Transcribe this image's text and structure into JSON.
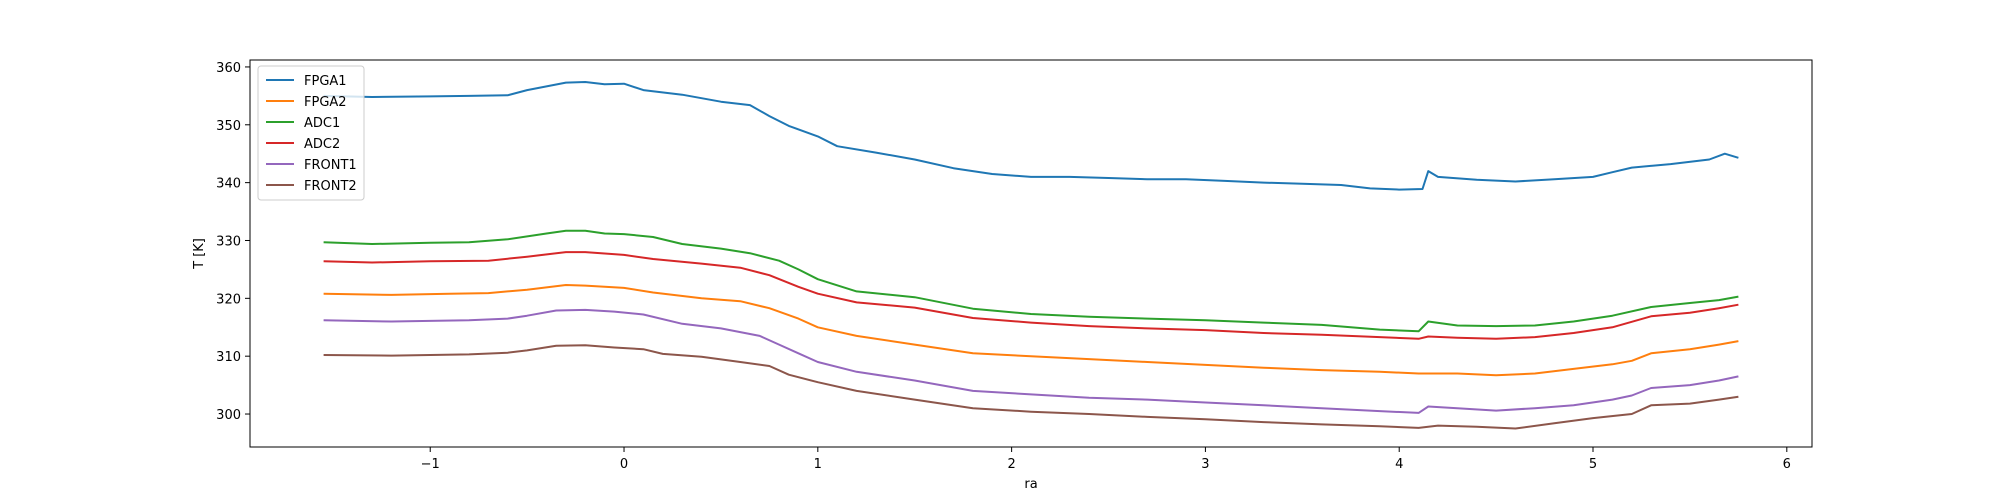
{
  "chart_data": {
    "type": "line",
    "title": "",
    "xlabel": "ra",
    "ylabel": "T [K]",
    "xlim": [
      -1.93,
      6.13
    ],
    "ylim": [
      294.3,
      361.2
    ],
    "xticks": [
      -1,
      0,
      1,
      2,
      3,
      4,
      5,
      6
    ],
    "yticks": [
      300,
      310,
      320,
      330,
      340,
      350,
      360
    ],
    "xtick_labels": [
      "−1",
      "0",
      "1",
      "2",
      "3",
      "4",
      "5",
      "6"
    ],
    "ytick_labels": [
      "300",
      "310",
      "320",
      "330",
      "340",
      "350",
      "360"
    ],
    "grid": false,
    "legend_position": "top-left",
    "series": [
      {
        "name": "FPGA1",
        "color": "#1f77b4",
        "points": [
          [
            -1.55,
            355.0
          ],
          [
            -1.3,
            354.8
          ],
          [
            -1.0,
            354.9
          ],
          [
            -0.8,
            355.0
          ],
          [
            -0.6,
            355.1
          ],
          [
            -0.5,
            356.0
          ],
          [
            -0.3,
            357.3
          ],
          [
            -0.2,
            357.4
          ],
          [
            -0.1,
            357.0
          ],
          [
            0.0,
            357.1
          ],
          [
            0.1,
            356.0
          ],
          [
            0.3,
            355.2
          ],
          [
            0.5,
            354.0
          ],
          [
            0.65,
            353.4
          ],
          [
            0.75,
            351.5
          ],
          [
            0.85,
            349.8
          ],
          [
            1.0,
            348.0
          ],
          [
            1.1,
            346.3
          ],
          [
            1.3,
            345.2
          ],
          [
            1.5,
            344.0
          ],
          [
            1.7,
            342.5
          ],
          [
            1.9,
            341.5
          ],
          [
            2.1,
            341.0
          ],
          [
            2.3,
            341.0
          ],
          [
            2.5,
            340.8
          ],
          [
            2.7,
            340.6
          ],
          [
            2.9,
            340.6
          ],
          [
            3.1,
            340.3
          ],
          [
            3.3,
            340.0
          ],
          [
            3.5,
            339.8
          ],
          [
            3.7,
            339.6
          ],
          [
            3.85,
            339.0
          ],
          [
            4.0,
            338.8
          ],
          [
            4.12,
            338.9
          ],
          [
            4.15,
            342.0
          ],
          [
            4.2,
            341.0
          ],
          [
            4.4,
            340.5
          ],
          [
            4.6,
            340.2
          ],
          [
            4.8,
            340.6
          ],
          [
            5.0,
            341.0
          ],
          [
            5.1,
            341.8
          ],
          [
            5.2,
            342.6
          ],
          [
            5.4,
            343.2
          ],
          [
            5.6,
            344.0
          ],
          [
            5.68,
            345.0
          ],
          [
            5.75,
            344.3
          ]
        ]
      },
      {
        "name": "FPGA2",
        "color": "#ff7f0e",
        "points": [
          [
            -1.55,
            320.8
          ],
          [
            -1.2,
            320.6
          ],
          [
            -0.9,
            320.8
          ],
          [
            -0.7,
            320.9
          ],
          [
            -0.5,
            321.5
          ],
          [
            -0.3,
            322.3
          ],
          [
            -0.2,
            322.2
          ],
          [
            0.0,
            321.8
          ],
          [
            0.15,
            321.0
          ],
          [
            0.4,
            320.0
          ],
          [
            0.6,
            319.5
          ],
          [
            0.75,
            318.3
          ],
          [
            0.9,
            316.5
          ],
          [
            1.0,
            315.0
          ],
          [
            1.2,
            313.5
          ],
          [
            1.5,
            312.0
          ],
          [
            1.8,
            310.5
          ],
          [
            2.1,
            310.0
          ],
          [
            2.4,
            309.5
          ],
          [
            2.7,
            309.0
          ],
          [
            3.0,
            308.5
          ],
          [
            3.3,
            308.0
          ],
          [
            3.6,
            307.6
          ],
          [
            3.9,
            307.3
          ],
          [
            4.1,
            307.0
          ],
          [
            4.3,
            307.0
          ],
          [
            4.5,
            306.7
          ],
          [
            4.7,
            307.0
          ],
          [
            4.9,
            307.8
          ],
          [
            5.1,
            308.6
          ],
          [
            5.2,
            309.2
          ],
          [
            5.3,
            310.5
          ],
          [
            5.5,
            311.2
          ],
          [
            5.65,
            312.0
          ],
          [
            5.75,
            312.6
          ]
        ]
      },
      {
        "name": "ADC1",
        "color": "#2ca02c",
        "points": [
          [
            -1.55,
            329.7
          ],
          [
            -1.3,
            329.4
          ],
          [
            -1.0,
            329.6
          ],
          [
            -0.8,
            329.7
          ],
          [
            -0.6,
            330.2
          ],
          [
            -0.4,
            331.2
          ],
          [
            -0.3,
            331.7
          ],
          [
            -0.2,
            331.7
          ],
          [
            -0.1,
            331.2
          ],
          [
            0.0,
            331.1
          ],
          [
            0.15,
            330.6
          ],
          [
            0.3,
            329.4
          ],
          [
            0.5,
            328.6
          ],
          [
            0.65,
            327.8
          ],
          [
            0.8,
            326.5
          ],
          [
            0.9,
            325.0
          ],
          [
            1.0,
            323.3
          ],
          [
            1.2,
            321.2
          ],
          [
            1.5,
            320.2
          ],
          [
            1.8,
            318.2
          ],
          [
            2.1,
            317.3
          ],
          [
            2.4,
            316.8
          ],
          [
            2.7,
            316.5
          ],
          [
            3.0,
            316.2
          ],
          [
            3.3,
            315.8
          ],
          [
            3.6,
            315.4
          ],
          [
            3.9,
            314.6
          ],
          [
            4.1,
            314.3
          ],
          [
            4.15,
            316.0
          ],
          [
            4.3,
            315.3
          ],
          [
            4.5,
            315.2
          ],
          [
            4.7,
            315.3
          ],
          [
            4.9,
            316.0
          ],
          [
            5.1,
            317.0
          ],
          [
            5.3,
            318.5
          ],
          [
            5.5,
            319.2
          ],
          [
            5.65,
            319.7
          ],
          [
            5.75,
            320.3
          ]
        ]
      },
      {
        "name": "ADC2",
        "color": "#d62728",
        "points": [
          [
            -1.55,
            326.4
          ],
          [
            -1.3,
            326.2
          ],
          [
            -1.0,
            326.4
          ],
          [
            -0.7,
            326.5
          ],
          [
            -0.5,
            327.2
          ],
          [
            -0.3,
            328.0
          ],
          [
            -0.2,
            328.0
          ],
          [
            0.0,
            327.5
          ],
          [
            0.15,
            326.8
          ],
          [
            0.4,
            326.0
          ],
          [
            0.6,
            325.3
          ],
          [
            0.75,
            324.0
          ],
          [
            0.9,
            322.0
          ],
          [
            1.0,
            320.8
          ],
          [
            1.2,
            319.3
          ],
          [
            1.5,
            318.4
          ],
          [
            1.8,
            316.6
          ],
          [
            2.1,
            315.8
          ],
          [
            2.4,
            315.2
          ],
          [
            2.7,
            314.8
          ],
          [
            3.0,
            314.5
          ],
          [
            3.3,
            314.0
          ],
          [
            3.6,
            313.7
          ],
          [
            3.9,
            313.3
          ],
          [
            4.1,
            313.0
          ],
          [
            4.15,
            313.4
          ],
          [
            4.3,
            313.2
          ],
          [
            4.5,
            313.0
          ],
          [
            4.7,
            313.3
          ],
          [
            4.9,
            314.0
          ],
          [
            5.1,
            315.0
          ],
          [
            5.3,
            316.9
          ],
          [
            5.5,
            317.5
          ],
          [
            5.65,
            318.3
          ],
          [
            5.75,
            318.9
          ]
        ]
      },
      {
        "name": "FRONT1",
        "color": "#9467bd",
        "points": [
          [
            -1.55,
            316.2
          ],
          [
            -1.2,
            316.0
          ],
          [
            -0.8,
            316.2
          ],
          [
            -0.6,
            316.5
          ],
          [
            -0.5,
            317.0
          ],
          [
            -0.35,
            317.9
          ],
          [
            -0.2,
            318.0
          ],
          [
            -0.05,
            317.7
          ],
          [
            0.1,
            317.2
          ],
          [
            0.3,
            315.6
          ],
          [
            0.5,
            314.8
          ],
          [
            0.7,
            313.5
          ],
          [
            0.8,
            312.0
          ],
          [
            0.9,
            310.5
          ],
          [
            1.0,
            309.0
          ],
          [
            1.2,
            307.3
          ],
          [
            1.5,
            305.8
          ],
          [
            1.8,
            304.0
          ],
          [
            2.1,
            303.4
          ],
          [
            2.4,
            302.8
          ],
          [
            2.7,
            302.5
          ],
          [
            3.0,
            302.0
          ],
          [
            3.3,
            301.5
          ],
          [
            3.6,
            301.0
          ],
          [
            3.9,
            300.5
          ],
          [
            4.1,
            300.2
          ],
          [
            4.15,
            301.3
          ],
          [
            4.3,
            301.0
          ],
          [
            4.5,
            300.6
          ],
          [
            4.7,
            301.0
          ],
          [
            4.9,
            301.5
          ],
          [
            5.1,
            302.5
          ],
          [
            5.2,
            303.2
          ],
          [
            5.3,
            304.5
          ],
          [
            5.5,
            305.0
          ],
          [
            5.65,
            305.8
          ],
          [
            5.75,
            306.5
          ]
        ]
      },
      {
        "name": "FRONT2",
        "color": "#8c564b",
        "points": [
          [
            -1.55,
            310.2
          ],
          [
            -1.2,
            310.1
          ],
          [
            -0.8,
            310.3
          ],
          [
            -0.6,
            310.6
          ],
          [
            -0.5,
            311.0
          ],
          [
            -0.35,
            311.8
          ],
          [
            -0.2,
            311.9
          ],
          [
            -0.05,
            311.5
          ],
          [
            0.1,
            311.2
          ],
          [
            0.2,
            310.4
          ],
          [
            0.4,
            309.9
          ],
          [
            0.6,
            309.0
          ],
          [
            0.75,
            308.3
          ],
          [
            0.85,
            306.8
          ],
          [
            1.0,
            305.5
          ],
          [
            1.2,
            304.0
          ],
          [
            1.5,
            302.5
          ],
          [
            1.8,
            301.0
          ],
          [
            2.1,
            300.4
          ],
          [
            2.4,
            300.0
          ],
          [
            2.7,
            299.5
          ],
          [
            3.0,
            299.1
          ],
          [
            3.3,
            298.6
          ],
          [
            3.6,
            298.2
          ],
          [
            3.9,
            297.9
          ],
          [
            4.1,
            297.6
          ],
          [
            4.2,
            298.0
          ],
          [
            4.4,
            297.8
          ],
          [
            4.6,
            297.5
          ],
          [
            4.8,
            298.4
          ],
          [
            5.0,
            299.3
          ],
          [
            5.2,
            300.0
          ],
          [
            5.3,
            301.5
          ],
          [
            5.5,
            301.8
          ],
          [
            5.65,
            302.5
          ],
          [
            5.75,
            303.0
          ]
        ]
      }
    ]
  }
}
